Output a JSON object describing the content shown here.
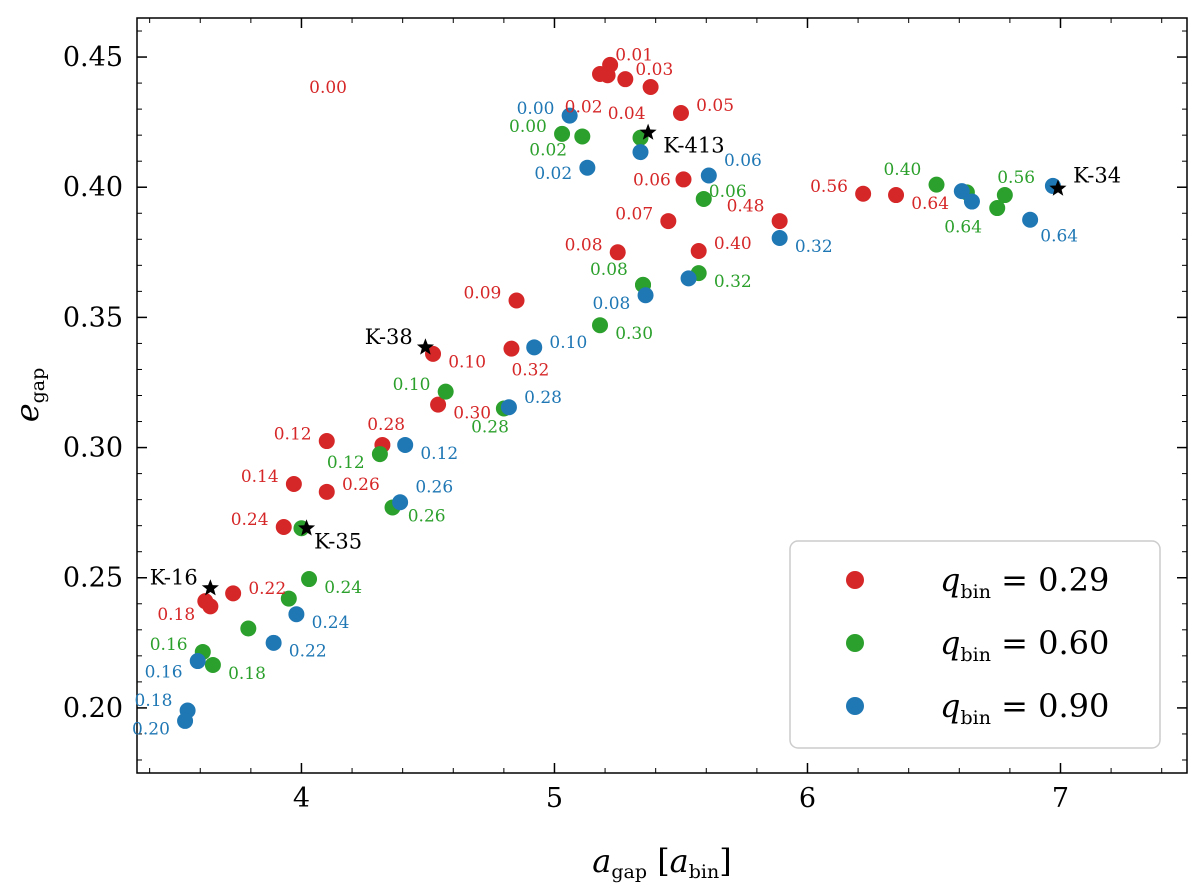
{
  "chart_data": {
    "type": "scatter",
    "xlabel": {
      "base": "a",
      "sub": "gap",
      "unit_base": "a",
      "unit_sub": "bin"
    },
    "ylabel": {
      "base": "e",
      "sub": "gap"
    },
    "xlim": [
      3.35,
      7.5
    ],
    "ylim": [
      0.175,
      0.465
    ],
    "xticks": [
      4,
      5,
      6,
      7
    ],
    "xtick_labels": [
      "4",
      "5",
      "6",
      "7"
    ],
    "yticks": [
      0.2,
      0.25,
      0.3,
      0.35,
      0.4,
      0.45
    ],
    "ytick_labels": [
      "0.20",
      "0.25",
      "0.30",
      "0.35",
      "0.40",
      "0.45"
    ],
    "legend_position": "bottom-right",
    "series": [
      {
        "name": "q_bin = 0.29",
        "legend": {
          "base": "q",
          "sub": "bin",
          "rest": " = 0.29"
        },
        "color": "#d62728",
        "points": [
          {
            "x": 5.18,
            "y": 0.4435,
            "label": "0.00",
            "ldx": -1,
            "ldy": -0.005,
            "align": "end"
          },
          {
            "x": 5.22,
            "y": 0.447,
            "label": "0.01",
            "ldx": 0.02,
            "ldy": 0.004,
            "align": "start"
          },
          {
            "x": 5.21,
            "y": 0.443,
            "label": "0.02",
            "ldx": -0.02,
            "ldy": -0.012,
            "align": "end"
          },
          {
            "x": 5.28,
            "y": 0.4415,
            "label": "0.03",
            "ldx": 0.04,
            "ldy": 0.004,
            "align": "start"
          },
          {
            "x": 5.38,
            "y": 0.4385,
            "label": "0.04",
            "ldx": -0.02,
            "ldy": -0.01,
            "align": "end"
          },
          {
            "x": 5.5,
            "y": 0.4285,
            "label": "0.05",
            "ldx": 0.06,
            "ldy": 0.003,
            "align": "start"
          },
          {
            "x": 5.51,
            "y": 0.403,
            "label": "0.06",
            "ldx": -0.05,
            "ldy": 0.0,
            "align": "end"
          },
          {
            "x": 5.45,
            "y": 0.387,
            "label": "0.07",
            "ldx": -0.06,
            "ldy": 0.003,
            "align": "end"
          },
          {
            "x": 5.25,
            "y": 0.375,
            "label": "0.08",
            "ldx": -0.06,
            "ldy": 0.003,
            "align": "end"
          },
          {
            "x": 4.85,
            "y": 0.3565,
            "label": "0.09",
            "ldx": -0.06,
            "ldy": 0.003,
            "align": "end"
          },
          {
            "x": 4.52,
            "y": 0.336,
            "label": "0.10",
            "ldx": 0.06,
            "ldy": -0.003,
            "align": "start"
          },
          {
            "x": 4.1,
            "y": 0.3025,
            "label": "0.12",
            "ldx": -0.06,
            "ldy": 0.003,
            "align": "end"
          },
          {
            "x": 3.97,
            "y": 0.286,
            "label": "0.14",
            "ldx": -0.06,
            "ldy": 0.003,
            "align": "end"
          },
          {
            "x": 3.64,
            "y": 0.239,
            "label": "0.18",
            "ldx": -0.06,
            "ldy": -0.003,
            "align": "end"
          },
          {
            "x": 3.73,
            "y": 0.244,
            "label": "0.22",
            "ldx": 0.06,
            "ldy": 0.002,
            "align": "start"
          },
          {
            "x": 3.93,
            "y": 0.2695,
            "label": "0.24",
            "ldx": -0.06,
            "ldy": 0.003,
            "align": "end"
          },
          {
            "x": 4.1,
            "y": 0.283,
            "label": "0.26",
            "ldx": 0.06,
            "ldy": 0.003,
            "align": "start"
          },
          {
            "x": 4.32,
            "y": 0.301,
            "label": "0.28",
            "ldx": -0.06,
            "ldy": 0.008,
            "align": "start"
          },
          {
            "x": 4.54,
            "y": 0.3165,
            "label": "0.30",
            "ldx": 0.06,
            "ldy": -0.003,
            "align": "start"
          },
          {
            "x": 4.83,
            "y": 0.338,
            "label": "0.32",
            "ldx": 0.0,
            "ldy": -0.008,
            "align": "start"
          },
          {
            "x": 5.57,
            "y": 0.3755,
            "label": "0.40",
            "ldx": 0.06,
            "ldy": 0.003,
            "align": "start"
          },
          {
            "x": 5.89,
            "y": 0.387,
            "label": "0.48",
            "ldx": -0.06,
            "ldy": 0.006,
            "align": "end"
          },
          {
            "x": 6.22,
            "y": 0.3975,
            "label": "0.56",
            "ldx": -0.06,
            "ldy": 0.003,
            "align": "end"
          },
          {
            "x": 6.35,
            "y": 0.397,
            "label": "0.64",
            "ldx": 0.06,
            "ldy": -0.003,
            "align": "start"
          },
          {
            "x": 3.62,
            "y": 0.241,
            "label": "",
            "ldx": 0,
            "ldy": 0,
            "align": "start"
          }
        ]
      },
      {
        "name": "q_bin = 0.60",
        "legend": {
          "base": "q",
          "sub": "bin",
          "rest": " = 0.60"
        },
        "color": "#2ca02c",
        "points": [
          {
            "x": 5.03,
            "y": 0.4205,
            "label": "0.00",
            "ldx": -0.06,
            "ldy": 0.003,
            "align": "end"
          },
          {
            "x": 5.11,
            "y": 0.4195,
            "label": "0.02",
            "ldx": -0.06,
            "ldy": -0.005,
            "align": "end"
          },
          {
            "x": 5.59,
            "y": 0.3955,
            "label": "0.06",
            "ldx": 0.02,
            "ldy": 0.003,
            "align": "start"
          },
          {
            "x": 5.35,
            "y": 0.3625,
            "label": "0.08",
            "ldx": -0.06,
            "ldy": 0.006,
            "align": "end"
          },
          {
            "x": 4.57,
            "y": 0.3215,
            "label": "0.10",
            "ldx": -0.06,
            "ldy": 0.003,
            "align": "end"
          },
          {
            "x": 4.31,
            "y": 0.2975,
            "label": "0.12",
            "ldx": -0.06,
            "ldy": -0.003,
            "align": "end"
          },
          {
            "x": 3.61,
            "y": 0.2215,
            "label": "0.16",
            "ldx": -0.06,
            "ldy": 0.003,
            "align": "end"
          },
          {
            "x": 3.65,
            "y": 0.2165,
            "label": "0.18",
            "ldx": 0.06,
            "ldy": -0.003,
            "align": "start"
          },
          {
            "x": 4.03,
            "y": 0.2495,
            "label": "0.24",
            "ldx": 0.06,
            "ldy": -0.003,
            "align": "start"
          },
          {
            "x": 4.36,
            "y": 0.277,
            "label": "0.26",
            "ldx": 0.06,
            "ldy": -0.003,
            "align": "start"
          },
          {
            "x": 4.8,
            "y": 0.315,
            "label": "0.28",
            "ldx": 0.02,
            "ldy": -0.007,
            "align": "end"
          },
          {
            "x": 5.18,
            "y": 0.347,
            "label": "0.30",
            "ldx": 0.06,
            "ldy": -0.003,
            "align": "start"
          },
          {
            "x": 5.57,
            "y": 0.367,
            "label": "0.32",
            "ldx": 0.06,
            "ldy": -0.003,
            "align": "start"
          },
          {
            "x": 6.51,
            "y": 0.401,
            "label": "0.40",
            "ldx": -0.06,
            "ldy": 0.006,
            "align": "end"
          },
          {
            "x": 6.78,
            "y": 0.397,
            "label": "0.56",
            "ldx": -0.03,
            "ldy": 0.007,
            "align": "start"
          },
          {
            "x": 6.75,
            "y": 0.392,
            "label": "0.64",
            "ldx": -0.06,
            "ldy": -0.007,
            "align": "end"
          },
          {
            "x": 5.34,
            "y": 0.419,
            "label": "",
            "ldx": 0,
            "ldy": 0,
            "align": "start"
          },
          {
            "x": 5.35,
            "y": 0.3625,
            "label": "",
            "ldx": 0,
            "ldy": 0,
            "align": "start"
          },
          {
            "x": 4.0,
            "y": 0.269,
            "label": "",
            "ldx": 0,
            "ldy": 0,
            "align": "start"
          },
          {
            "x": 3.79,
            "y": 0.2305,
            "label": "",
            "ldx": 0,
            "ldy": 0,
            "align": "start"
          },
          {
            "x": 3.95,
            "y": 0.242,
            "label": "",
            "ldx": 0,
            "ldy": 0,
            "align": "start"
          },
          {
            "x": 6.63,
            "y": 0.398,
            "label": "",
            "ldx": 0,
            "ldy": 0,
            "align": "start"
          }
        ]
      },
      {
        "name": "q_bin = 0.90",
        "legend": {
          "base": "q",
          "sub": "bin",
          "rest": " = 0.90"
        },
        "color": "#1f77b4",
        "points": [
          {
            "x": 5.06,
            "y": 0.4275,
            "label": "0.00",
            "ldx": -0.06,
            "ldy": 0.003,
            "align": "end"
          },
          {
            "x": 5.13,
            "y": 0.4075,
            "label": "0.02",
            "ldx": -0.06,
            "ldy": -0.002,
            "align": "end"
          },
          {
            "x": 5.61,
            "y": 0.4045,
            "label": "0.06",
            "ldx": 0.06,
            "ldy": 0.006,
            "align": "start"
          },
          {
            "x": 5.36,
            "y": 0.3585,
            "label": "0.08",
            "ldx": -0.06,
            "ldy": -0.003,
            "align": "end"
          },
          {
            "x": 4.92,
            "y": 0.3385,
            "label": "0.10",
            "ldx": 0.06,
            "ldy": 0.002,
            "align": "start"
          },
          {
            "x": 4.41,
            "y": 0.301,
            "label": "0.12",
            "ldx": 0.06,
            "ldy": -0.003,
            "align": "start"
          },
          {
            "x": 3.59,
            "y": 0.218,
            "label": "0.16",
            "ldx": -0.06,
            "ldy": -0.004,
            "align": "end"
          },
          {
            "x": 3.55,
            "y": 0.199,
            "label": "0.18",
            "ldx": -0.06,
            "ldy": 0.004,
            "align": "end"
          },
          {
            "x": 3.54,
            "y": 0.195,
            "label": "0.20",
            "ldx": -0.06,
            "ldy": -0.003,
            "align": "end"
          },
          {
            "x": 3.89,
            "y": 0.225,
            "label": "0.22",
            "ldx": 0.06,
            "ldy": -0.003,
            "align": "start"
          },
          {
            "x": 3.98,
            "y": 0.236,
            "label": "0.24",
            "ldx": 0.06,
            "ldy": -0.003,
            "align": "start"
          },
          {
            "x": 4.39,
            "y": 0.279,
            "label": "0.26",
            "ldx": 0.06,
            "ldy": 0.006,
            "align": "start"
          },
          {
            "x": 4.82,
            "y": 0.3155,
            "label": "0.28",
            "ldx": 0.06,
            "ldy": 0.004,
            "align": "start"
          },
          {
            "x": 5.89,
            "y": 0.3805,
            "label": "0.32",
            "ldx": 0.06,
            "ldy": -0.003,
            "align": "start"
          },
          {
            "x": 6.88,
            "y": 0.3875,
            "label": "0.64",
            "ldx": 0.04,
            "ldy": -0.006,
            "align": "start"
          },
          {
            "x": 5.34,
            "y": 0.4135,
            "label": "",
            "ldx": 0,
            "ldy": 0,
            "align": "start"
          },
          {
            "x": 5.53,
            "y": 0.365,
            "label": "",
            "ldx": 0,
            "ldy": 0,
            "align": "start"
          },
          {
            "x": 6.61,
            "y": 0.3985,
            "label": "",
            "ldx": 0,
            "ldy": 0,
            "align": "start"
          },
          {
            "x": 6.65,
            "y": 0.3945,
            "label": "",
            "ldx": 0,
            "ldy": 0,
            "align": "start"
          },
          {
            "x": 6.97,
            "y": 0.4005,
            "label": "",
            "ldx": 0,
            "ldy": 0,
            "align": "start"
          }
        ]
      }
    ],
    "markers": [
      {
        "name": "K-16",
        "x": 3.64,
        "y": 0.246,
        "ldx": -0.05,
        "ldy": 0.004,
        "align": "end"
      },
      {
        "name": "K-35",
        "x": 4.02,
        "y": 0.269,
        "ldx": 0.03,
        "ldy": -0.005,
        "align": "start"
      },
      {
        "name": "K-38",
        "x": 4.49,
        "y": 0.3385,
        "ldx": -0.05,
        "ldy": 0.004,
        "align": "end"
      },
      {
        "name": "K-413",
        "x": 5.37,
        "y": 0.421,
        "ldx": 0.06,
        "ldy": -0.005,
        "align": "start"
      },
      {
        "name": "K-34",
        "x": 6.99,
        "y": 0.3995,
        "ldx": 0.06,
        "ldy": 0.005,
        "align": "start"
      }
    ]
  }
}
